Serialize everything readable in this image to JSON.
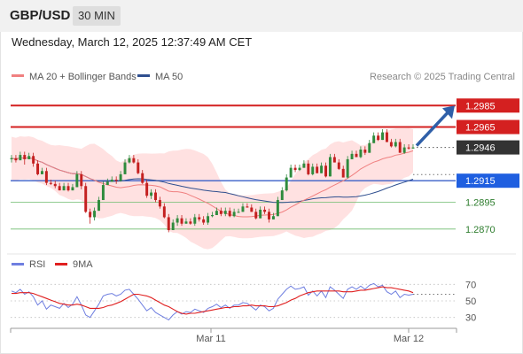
{
  "header": {
    "symbol": "GBP/USD",
    "timeframe": "30 MIN"
  },
  "datetime": "Wednesday, March 12, 2025 12:37:49 AM CET",
  "legend": {
    "ma20": {
      "label": "MA 20 + Bollinger Bands",
      "color": "#f08080"
    },
    "ma50": {
      "label": "MA 50",
      "color": "#2f4f8f"
    },
    "rsi": {
      "label": "RSI",
      "color": "#6f7fe0"
    },
    "ma9": {
      "label": "9MA",
      "color": "#e02020"
    }
  },
  "copyright": "Research © 2025 Trading Central",
  "chart_data": {
    "type": "candlestick",
    "ylim": [
      1.2855,
      1.3005
    ],
    "x_labels": [
      "Mar 11",
      "Mar 12"
    ],
    "current_price": "1.2946",
    "levels": [
      {
        "label": "1.2985",
        "value": 1.2985,
        "style": "resistance"
      },
      {
        "label": "1.2965",
        "value": 1.2965,
        "style": "resistance"
      },
      {
        "label": "1.2946",
        "value": 1.2946,
        "style": "current"
      },
      {
        "label": "1.2915",
        "value": 1.2915,
        "style": "pivot"
      },
      {
        "label": "1.2895",
        "value": 1.2895,
        "style": "support"
      },
      {
        "label": "1.2870",
        "value": 1.287,
        "style": "support"
      }
    ],
    "arrow": {
      "from": 1.2946,
      "to": 1.2985,
      "direction": "up"
    },
    "candles": [
      [
        1.2935,
        1.2936,
        1.2932
      ],
      [
        1.2936,
        1.2934,
        1.2932
      ],
      [
        1.2934,
        1.2939,
        1.2937
      ],
      [
        1.2939,
        1.2935,
        1.293
      ],
      [
        1.2935,
        1.2938,
        1.2935
      ],
      [
        1.2938,
        1.2931,
        1.2928
      ],
      [
        1.2931,
        1.2921,
        1.292
      ],
      [
        1.2921,
        1.2924,
        1.2922
      ],
      [
        1.2924,
        1.2913,
        1.2911
      ],
      [
        1.2913,
        1.2912,
        1.2911
      ],
      [
        1.2912,
        1.291,
        1.2908
      ],
      [
        1.291,
        1.2906,
        1.2906
      ],
      [
        1.2906,
        1.291,
        1.2906
      ],
      [
        1.291,
        1.2906,
        1.2905
      ],
      [
        1.2906,
        1.2909,
        1.2906
      ],
      [
        1.2909,
        1.2921,
        1.2909
      ],
      [
        1.2921,
        1.291,
        1.2907
      ],
      [
        1.291,
        1.2886,
        1.2885
      ],
      [
        1.2886,
        1.2881,
        1.2875
      ],
      [
        1.2881,
        1.2887,
        1.2878
      ],
      [
        1.2887,
        1.2897,
        1.2887
      ],
      [
        1.2897,
        1.2911,
        1.2897
      ],
      [
        1.2911,
        1.2914,
        1.2911
      ],
      [
        1.2914,
        1.2916,
        1.2914
      ],
      [
        1.2916,
        1.2915,
        1.2912
      ],
      [
        1.2915,
        1.2921,
        1.2914
      ],
      [
        1.2921,
        1.2932,
        1.2921
      ],
      [
        1.2932,
        1.2936,
        1.2931
      ],
      [
        1.2936,
        1.2932,
        1.2931
      ],
      [
        1.2932,
        1.2922,
        1.2921
      ],
      [
        1.2922,
        1.2913,
        1.2912
      ],
      [
        1.2913,
        1.2901,
        1.2899
      ],
      [
        1.2901,
        1.2904,
        1.2898
      ],
      [
        1.2904,
        1.2897,
        1.2895
      ],
      [
        1.2897,
        1.2891,
        1.2889
      ],
      [
        1.2891,
        1.2881,
        1.288
      ],
      [
        1.2881,
        1.2869,
        1.2867
      ],
      [
        1.2869,
        1.2876,
        1.2869
      ],
      [
        1.2876,
        1.288,
        1.2873
      ],
      [
        1.288,
        1.2875,
        1.2873
      ],
      [
        1.2875,
        1.2877,
        1.2875
      ],
      [
        1.2877,
        1.2875,
        1.2874
      ],
      [
        1.2875,
        1.2881,
        1.2873
      ],
      [
        1.2881,
        1.2879,
        1.2877
      ],
      [
        1.2879,
        1.2876,
        1.2874
      ],
      [
        1.2876,
        1.2882,
        1.2874
      ],
      [
        1.2882,
        1.2883,
        1.2881
      ],
      [
        1.2883,
        1.2887,
        1.2883
      ],
      [
        1.2887,
        1.2884,
        1.2882
      ],
      [
        1.2884,
        1.2887,
        1.2882
      ],
      [
        1.2887,
        1.2882,
        1.2881
      ],
      [
        1.2882,
        1.2886,
        1.2881
      ],
      [
        1.2886,
        1.2886,
        1.2885
      ],
      [
        1.2886,
        1.2891,
        1.2886
      ],
      [
        1.2891,
        1.289,
        1.289
      ],
      [
        1.289,
        1.2886,
        1.2886
      ],
      [
        1.2886,
        1.288,
        1.2879
      ],
      [
        1.288,
        1.2888,
        1.288
      ],
      [
        1.2888,
        1.2886,
        1.2884
      ],
      [
        1.2886,
        1.2879,
        1.2876
      ],
      [
        1.2879,
        1.2882,
        1.2879
      ],
      [
        1.2882,
        1.2897,
        1.2882
      ],
      [
        1.2897,
        1.2906,
        1.2897
      ],
      [
        1.2906,
        1.2918,
        1.2905
      ],
      [
        1.2918,
        1.2927,
        1.2918
      ],
      [
        1.2927,
        1.2925,
        1.2923
      ],
      [
        1.2925,
        1.2927,
        1.2924
      ],
      [
        1.2927,
        1.2931,
        1.2927
      ],
      [
        1.2931,
        1.2921,
        1.292
      ],
      [
        1.2921,
        1.2928,
        1.292
      ],
      [
        1.2928,
        1.2922,
        1.2922
      ],
      [
        1.2922,
        1.2929,
        1.2922
      ],
      [
        1.2929,
        1.2919,
        1.2918
      ],
      [
        1.2919,
        1.2937,
        1.2919
      ],
      [
        1.2937,
        1.2932,
        1.2932
      ],
      [
        1.2932,
        1.2926,
        1.2925
      ],
      [
        1.2926,
        1.2918,
        1.2918
      ],
      [
        1.2918,
        1.2935,
        1.2917
      ],
      [
        1.2935,
        1.294,
        1.2935
      ],
      [
        1.294,
        1.2937,
        1.2937
      ],
      [
        1.2937,
        1.2944,
        1.2936
      ],
      [
        1.2944,
        1.2941,
        1.2939
      ],
      [
        1.2941,
        1.295,
        1.2941
      ],
      [
        1.295,
        1.2957,
        1.295
      ],
      [
        1.2957,
        1.2953,
        1.2952
      ],
      [
        1.2953,
        1.296,
        1.2953
      ],
      [
        1.296,
        1.2951,
        1.2951
      ],
      [
        1.2951,
        1.2947,
        1.2946
      ],
      [
        1.2947,
        1.2951,
        1.2946
      ],
      [
        1.2951,
        1.2941,
        1.2941
      ],
      [
        1.2941,
        1.2946,
        1.294
      ],
      [
        1.2946,
        1.2945,
        1.2944
      ],
      [
        1.2945,
        1.2946,
        1.2945
      ]
    ],
    "rsi": {
      "ticks": [
        "70",
        "50",
        "30"
      ],
      "ylim": [
        20,
        80
      ],
      "values": [
        62,
        60,
        64,
        58,
        61,
        55,
        45,
        50,
        40,
        45,
        43,
        41,
        47,
        42,
        46,
        55,
        45,
        33,
        30,
        38,
        46,
        56,
        58,
        59,
        56,
        58,
        63,
        64,
        58,
        52,
        45,
        38,
        42,
        36,
        33,
        30,
        27,
        33,
        37,
        34,
        37,
        36,
        40,
        38,
        36,
        41,
        43,
        46,
        42,
        45,
        41,
        45,
        45,
        48,
        47,
        43,
        39,
        45,
        43,
        38,
        41,
        52,
        58,
        64,
        68,
        64,
        65,
        67,
        57,
        62,
        56,
        62,
        54,
        67,
        63,
        58,
        53,
        64,
        67,
        64,
        68,
        64,
        69,
        71,
        67,
        69,
        61,
        58,
        62,
        54,
        58,
        57,
        58
      ],
      "ma9": [
        59,
        59,
        60,
        60,
        60,
        59,
        57,
        55,
        53,
        51,
        49,
        47,
        46,
        45,
        45,
        46,
        45,
        43,
        41,
        41,
        41,
        42,
        44,
        45,
        47,
        49,
        52,
        55,
        58,
        58,
        57,
        56,
        54,
        51,
        48,
        45,
        43,
        40,
        37,
        35,
        34,
        35,
        35,
        36,
        37,
        38,
        39,
        40,
        41,
        42,
        42,
        43,
        43,
        44,
        44,
        45,
        44,
        44,
        44,
        43,
        43,
        44,
        46,
        48,
        51,
        53,
        56,
        58,
        60,
        61,
        62,
        62,
        62,
        62,
        62,
        62,
        61,
        61,
        61,
        62,
        63,
        63,
        64,
        65,
        66,
        67,
        66,
        66,
        65,
        64,
        63,
        62,
        60
      ]
    }
  }
}
